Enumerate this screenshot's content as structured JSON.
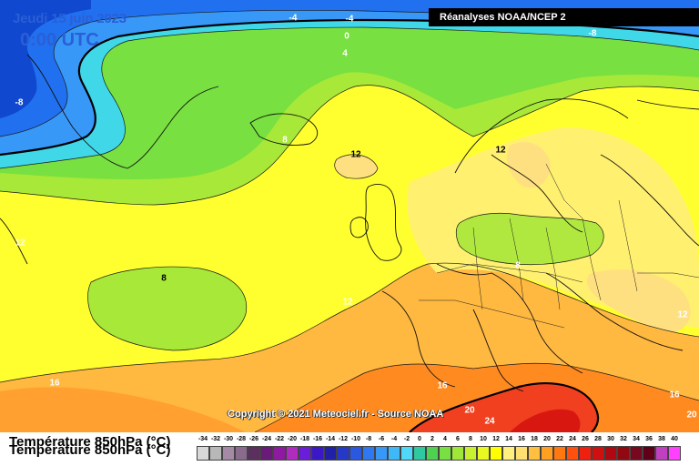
{
  "header": {
    "date_title": "Jeudi 15 juin 2023",
    "time_title": "0:00 UTC",
    "source": "Réanalyses NOAA/NCEP 2"
  },
  "copyright": "Copyright © 2021 Meteociel.fr - Source NOAA",
  "legend": {
    "title": "Température 850hPa (°C)",
    "ticks": [
      "-34",
      "-32",
      "-30",
      "-28",
      "-26",
      "-24",
      "-22",
      "-20",
      "-18",
      "-16",
      "-14",
      "-12",
      "-10",
      "-8",
      "-6",
      "-4",
      "-2",
      "0",
      "2",
      "4",
      "6",
      "8",
      "10",
      "12",
      "14",
      "16",
      "18",
      "20",
      "22",
      "24",
      "26",
      "28",
      "30",
      "32",
      "34",
      "36",
      "38",
      "40"
    ],
    "colors": [
      "#d8d8d8",
      "#b8b8b8",
      "#a58aa6",
      "#8a6b8e",
      "#5b2f5e",
      "#6a1a78",
      "#8d1aa0",
      "#b02cc0",
      "#6a1ed8",
      "#3a18c8",
      "#2020a8",
      "#2638c8",
      "#2a58e0",
      "#3078f0",
      "#3898f8",
      "#40b8f8",
      "#50d8f8",
      "#30c8a0",
      "#50d050",
      "#78e040",
      "#a0e838",
      "#c8f030",
      "#e8f820",
      "#ffff00",
      "#fff080",
      "#ffe070",
      "#ffc040",
      "#ffa020",
      "#ff7810",
      "#ff5010",
      "#f02010",
      "#d01010",
      "#b00810",
      "#900810",
      "#780820",
      "#600018",
      "#c040c0",
      "#ff40ff"
    ]
  },
  "contour_labels": [
    {
      "text": "-4"
    },
    {
      "text": "-4"
    },
    {
      "text": "0"
    },
    {
      "text": "4"
    },
    {
      "text": "-8"
    },
    {
      "text": "-8"
    },
    {
      "text": "8"
    },
    {
      "text": "12"
    },
    {
      "text": "12"
    },
    {
      "text": "12"
    },
    {
      "text": "8"
    },
    {
      "text": "8"
    },
    {
      "text": "12"
    },
    {
      "text": "12"
    },
    {
      "text": "16"
    },
    {
      "text": "16"
    },
    {
      "text": "20"
    },
    {
      "text": "24"
    },
    {
      "text": "16"
    },
    {
      "text": "20"
    }
  ],
  "map": {
    "field": "temperature_850hPa",
    "palette_note_colors": {
      "cold": "#0a4fd8",
      "cyan": "#40d8f8",
      "green": "#a0e838",
      "yellow": "#ffff00",
      "orange": "#ff8a20",
      "red": "#e02010"
    }
  }
}
